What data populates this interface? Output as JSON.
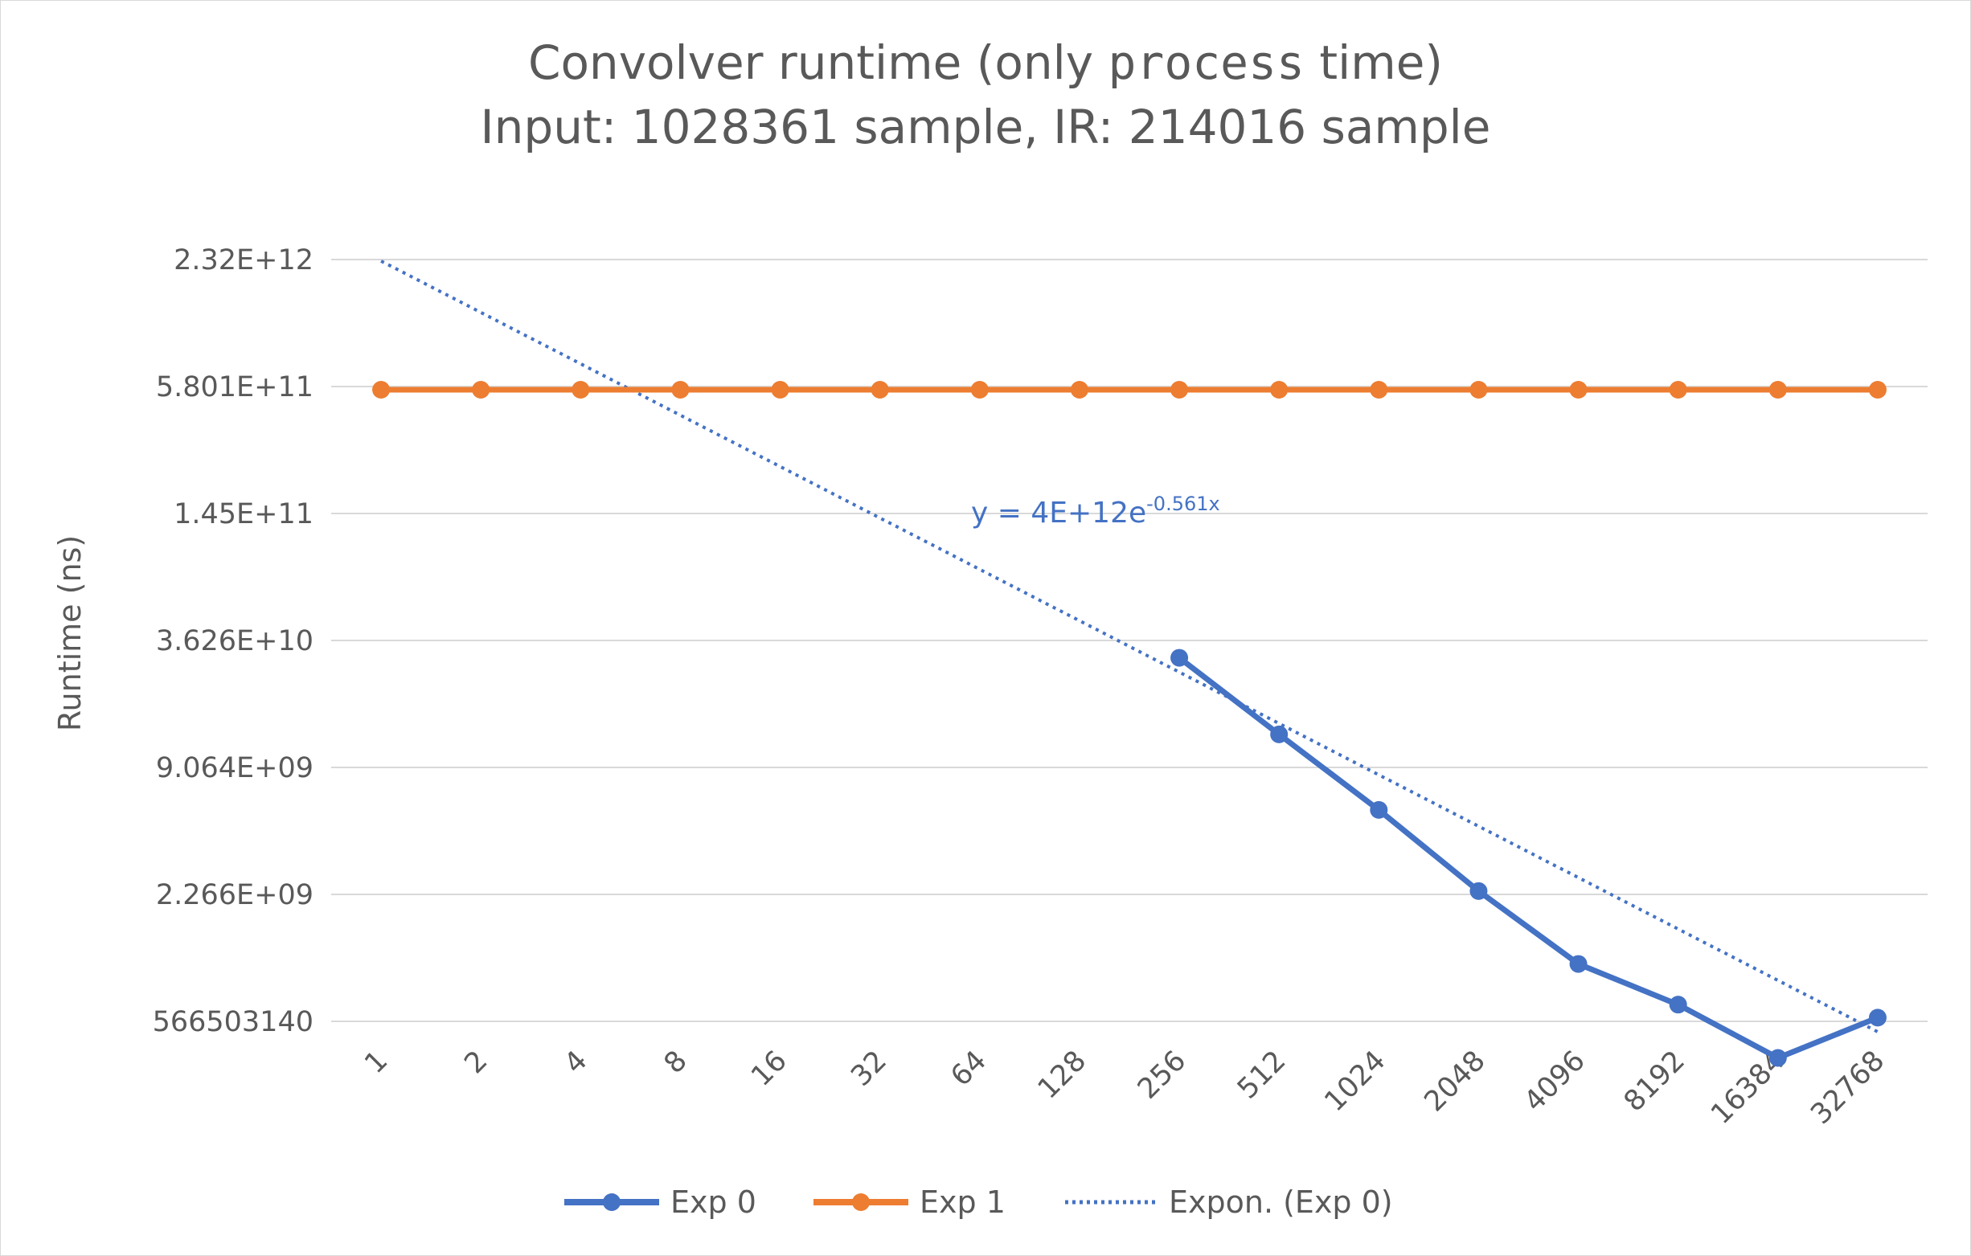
{
  "chart_data": {
    "type": "line",
    "title_line1_a": "Convolver runtime (only ",
    "title_line1_code": "process",
    "title_line1_b": " time)",
    "title_line2": "Input: 1028361 sample, IR: 214016 sample",
    "ylabel": "Runtime (ns)",
    "xlabel": "",
    "y_scale": "log",
    "y_ticks": [
      "2.32E+12",
      "5.801E+11",
      "1.45E+11",
      "3.626E+10",
      "9.064E+09",
      "2.266E+09",
      "566503140"
    ],
    "y_tick_values": [
      2320000000000,
      580100000000,
      145000000000,
      36260000000,
      9064000000,
      2266000000,
      566503140
    ],
    "categories": [
      "1",
      "2",
      "4",
      "8",
      "16",
      "32",
      "64",
      "128",
      "256",
      "512",
      "1024",
      "2048",
      "4096",
      "8192",
      "16384",
      "32768"
    ],
    "grid": true,
    "legend_position": "bottom",
    "series": [
      {
        "name": "Exp 0",
        "color": "#4472c4",
        "values": [
          null,
          null,
          null,
          null,
          null,
          null,
          null,
          null,
          30000000000,
          13000000000,
          5700000000,
          2350000000,
          1060000000,
          680000000,
          380000000,
          590000000
        ]
      },
      {
        "name": "Exp 1",
        "color": "#ed7d31",
        "values": [
          560000000000,
          560000000000,
          560000000000,
          560000000000,
          560000000000,
          560000000000,
          560000000000,
          560000000000,
          560000000000,
          560000000000,
          560000000000,
          560000000000,
          560000000000,
          560000000000,
          560000000000,
          560000000000
        ]
      }
    ],
    "trendline": {
      "name": "Expon. (Exp 0)",
      "type": "exponential",
      "of_series": "Exp 0",
      "color": "#4472c4",
      "a": 4000000000000,
      "b": -0.561,
      "equation_prefix": "y = 4E+12e",
      "equation_exponent": "-0.561x"
    }
  }
}
